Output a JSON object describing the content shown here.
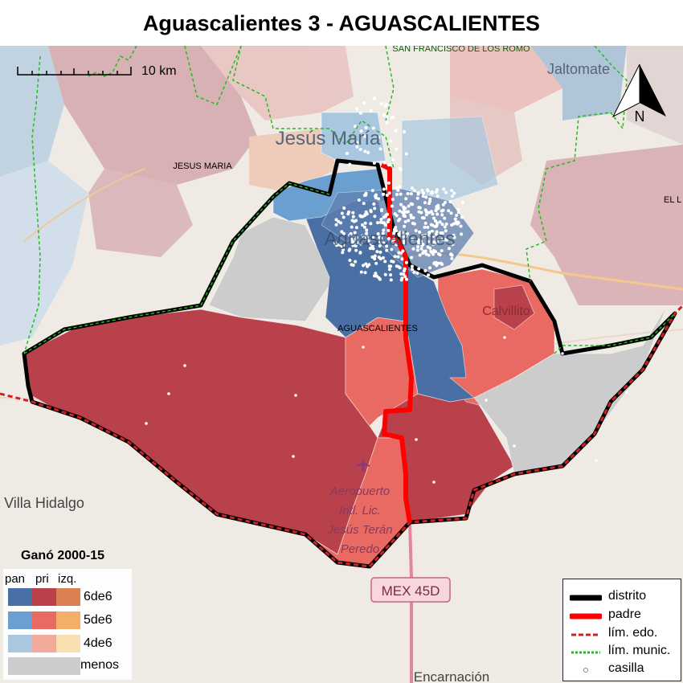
{
  "title": "Aguascalientes 3 - AGUASCALIENTES",
  "scalebar": {
    "label": "10 km"
  },
  "north_arrow": {
    "label": "N"
  },
  "places": {
    "jesus_maria_town": "Jesús María",
    "jesus_maria_muni": "JESUS MARIA",
    "aguascalientes_muni": "AGUASCALIENTES",
    "aguascalientes_city": "Aguascalientes",
    "san_francisco": "SAN FRANCISCO DE LOS ROMO",
    "jaltomate": "Jaltomate",
    "el_llano": "EL L",
    "calvillito": "Calvillito",
    "villa_hidalgo": "Villa Hidalgo",
    "airport": [
      "Aeropuerto",
      "Intl. Lic.",
      "Jesús Terán",
      "Peredo"
    ],
    "highway": "MEX 45D",
    "encarnacion": "Encarnación"
  },
  "win_legend": {
    "title": "Ganó 2000-15",
    "columns": [
      "pan",
      "pri",
      "izq."
    ],
    "rows": [
      "6de6",
      "5de6",
      "4de6",
      "menos"
    ],
    "colors": {
      "pan": [
        "#4a6fa5",
        "#6a9fcf",
        "#a9c8e0"
      ],
      "pri": [
        "#b8414c",
        "#e96a62",
        "#f2a89a"
      ],
      "izq": [
        "#d88050",
        "#f5ad6a",
        "#f8dfb0"
      ],
      "menos": "#cccccc"
    }
  },
  "line_legend": {
    "items": [
      {
        "label": "distrito",
        "style": "distrito"
      },
      {
        "label": "padre",
        "style": "padre"
      },
      {
        "label": "lím. edo.",
        "style": "edo"
      },
      {
        "label": "lím. munic.",
        "style": "munic"
      },
      {
        "label": "casilla",
        "style": "casilla"
      }
    ]
  },
  "colors": {
    "distrito": "#000000",
    "padre": "#ff0000",
    "edo": "#cc2222",
    "munic": "#22bb22",
    "pri_strong": "#b8414c",
    "pri_mid": "#e96a62",
    "pan_strong": "#4a6fa5",
    "pan_mid": "#6a9fcf",
    "menos": "#cccccc"
  }
}
